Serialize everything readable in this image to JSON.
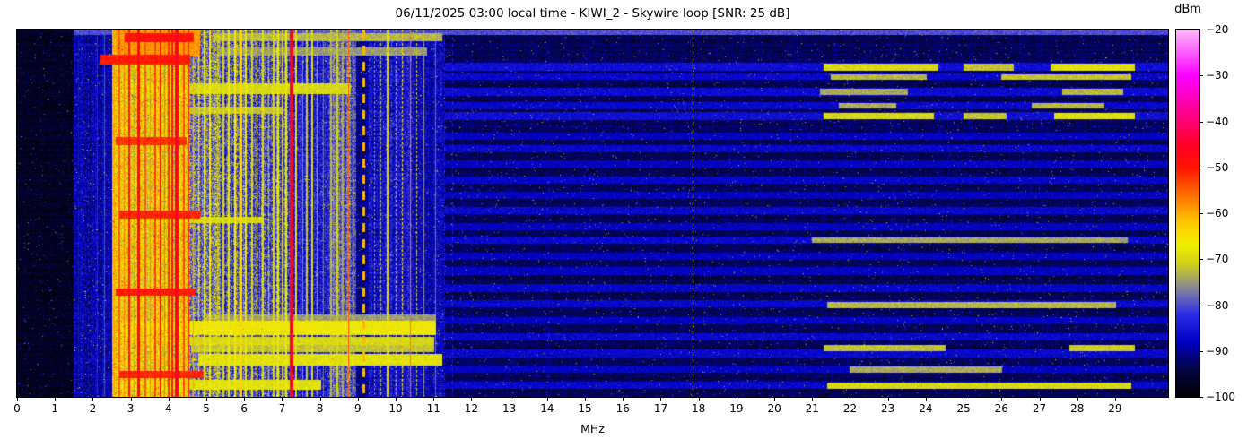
{
  "title": "06/11/2025 03:00 local time - KIWI_2 - Skywire loop [SNR: 25 dB]",
  "x_axis": {
    "label": "MHz",
    "tick_labels": [
      "0",
      "1",
      "2",
      "3",
      "4",
      "5",
      "6",
      "7",
      "8",
      "9",
      "10",
      "11",
      "12",
      "13",
      "14",
      "15",
      "16",
      "17",
      "18",
      "19",
      "20",
      "21",
      "22",
      "23",
      "24",
      "25",
      "26",
      "27",
      "28",
      "29"
    ]
  },
  "colorbar": {
    "label": "dBm",
    "tick_labels": [
      "−20",
      "−30",
      "−40",
      "−50",
      "−60",
      "−70",
      "−80",
      "−90",
      "−100"
    ],
    "tick_values": [
      -20,
      -30,
      -40,
      -50,
      -60,
      -70,
      -80,
      -90,
      -100
    ]
  },
  "chart_data": {
    "type": "heatmap",
    "title": "06/11/2025 03:00 local time - KIWI_2 - Skywire loop [SNR: 25 dB]",
    "xlabel": "MHz",
    "x_range_mhz": [
      0,
      30.4
    ],
    "x_tick_step_mhz": 1,
    "y_axis_ticks": [],
    "value_range_dbm": [
      -100,
      -20
    ],
    "colorbar_label": "dBm",
    "colormap_stops_dbm_rgb": [
      [
        -100,
        [
          0,
          0,
          0
        ]
      ],
      [
        -94,
        [
          5,
          5,
          70
        ]
      ],
      [
        -88,
        [
          0,
          0,
          200
        ]
      ],
      [
        -82,
        [
          45,
          45,
          230
        ]
      ],
      [
        -78,
        [
          110,
          110,
          180
        ]
      ],
      [
        -75,
        [
          155,
          155,
          120
        ]
      ],
      [
        -71,
        [
          210,
          210,
          25
        ]
      ],
      [
        -67,
        [
          240,
          240,
          0
        ]
      ],
      [
        -62,
        [
          255,
          200,
          0
        ]
      ],
      [
        -57,
        [
          255,
          125,
          0
        ]
      ],
      [
        -50,
        [
          255,
          20,
          0
        ]
      ],
      [
        -45,
        [
          255,
          0,
          40
        ]
      ],
      [
        -40,
        [
          255,
          0,
          115
        ]
      ],
      [
        -30,
        [
          250,
          0,
          255
        ]
      ],
      [
        -20,
        [
          255,
          185,
          252
        ]
      ]
    ],
    "noise_bands_fields": [
      "mhz0",
      "mhz1",
      "mean_dbm",
      "noise_dbm",
      "column_streak_dbm"
    ],
    "noise_bands": [
      [
        0.0,
        1.5,
        -97,
        3.0,
        1.0
      ],
      [
        1.5,
        2.5,
        -89,
        5.0,
        2.5
      ],
      [
        2.5,
        4.55,
        -66,
        8.0,
        5.0
      ],
      [
        4.55,
        5.35,
        -77,
        8.0,
        5.0
      ],
      [
        5.35,
        7.2,
        -80,
        8.0,
        6.0
      ],
      [
        7.2,
        8.25,
        -85,
        6.0,
        3.0
      ],
      [
        8.25,
        8.95,
        -79,
        6.0,
        4.0
      ],
      [
        8.95,
        9.3,
        -91,
        4.0,
        2.0
      ],
      [
        9.3,
        10.5,
        -86,
        6.0,
        3.0
      ],
      [
        10.5,
        11.3,
        -88,
        5.0,
        2.0
      ],
      [
        11.3,
        30.4,
        -93.5,
        3.5,
        1.3
      ]
    ],
    "vertical_lines_fields": [
      "mhz",
      "dbm",
      "width_px",
      "style"
    ],
    "vertical_lines": [
      [
        1.62,
        -86,
        1,
        "solid"
      ],
      [
        1.88,
        -84,
        1,
        "dash4"
      ],
      [
        2.12,
        -83,
        1,
        "solid"
      ],
      [
        2.3,
        -80,
        1,
        "solid"
      ],
      [
        2.56,
        -60,
        2,
        "solid"
      ],
      [
        2.7,
        -55,
        2,
        "solid"
      ],
      [
        2.84,
        -57,
        1,
        "solid"
      ],
      [
        2.96,
        -50,
        2,
        "solid"
      ],
      [
        3.1,
        -58,
        1,
        "solid"
      ],
      [
        3.22,
        -47,
        3,
        "solid"
      ],
      [
        3.38,
        -55,
        2,
        "solid"
      ],
      [
        3.52,
        -58,
        1,
        "solid"
      ],
      [
        3.64,
        -53,
        2,
        "solid"
      ],
      [
        3.78,
        -50,
        2,
        "solid"
      ],
      [
        3.9,
        -56,
        1,
        "solid"
      ],
      [
        4.0,
        -52,
        2,
        "solid"
      ],
      [
        4.1,
        -49,
        2,
        "solid"
      ],
      [
        4.22,
        -46,
        4,
        "solid"
      ],
      [
        4.4,
        -54,
        2,
        "solid"
      ],
      [
        4.52,
        -52,
        2,
        "solid"
      ],
      [
        4.66,
        -60,
        1,
        "solid"
      ],
      [
        4.8,
        -64,
        1,
        "solid"
      ],
      [
        4.95,
        -68,
        2,
        "solid"
      ],
      [
        5.1,
        -66,
        2,
        "solid"
      ],
      [
        5.3,
        -72,
        1,
        "solid"
      ],
      [
        5.45,
        -70,
        2,
        "solid"
      ],
      [
        5.6,
        -68,
        2,
        "solid"
      ],
      [
        5.75,
        -66,
        2,
        "solid"
      ],
      [
        5.9,
        -64,
        3,
        "solid"
      ],
      [
        6.05,
        -68,
        2,
        "solid"
      ],
      [
        6.2,
        -70,
        2,
        "solid"
      ],
      [
        6.35,
        -72,
        1,
        "solid"
      ],
      [
        6.5,
        -70,
        2,
        "solid"
      ],
      [
        6.65,
        -73,
        1,
        "solid"
      ],
      [
        6.78,
        -70,
        2,
        "solid"
      ],
      [
        6.9,
        -68,
        2,
        "solid"
      ],
      [
        7.02,
        -71,
        2,
        "solid"
      ],
      [
        7.12,
        -68,
        2,
        "solid"
      ],
      [
        7.25,
        -46,
        4,
        "solid"
      ],
      [
        7.38,
        -69,
        2,
        "solid"
      ],
      [
        7.55,
        -76,
        1,
        "solid"
      ],
      [
        7.65,
        -72,
        2,
        "solid"
      ],
      [
        7.8,
        -70,
        2,
        "solid"
      ],
      [
        7.92,
        -75,
        1,
        "solid"
      ],
      [
        8.1,
        -78,
        1,
        "solid"
      ],
      [
        8.3,
        -73,
        2,
        "solid"
      ],
      [
        8.45,
        -71,
        2,
        "solid"
      ],
      [
        8.6,
        -74,
        2,
        "solid"
      ],
      [
        8.75,
        -55,
        1,
        "solid"
      ],
      [
        8.88,
        -73,
        1,
        "solid"
      ],
      [
        9.15,
        -61,
        3,
        "dashed"
      ],
      [
        9.45,
        -75,
        1,
        "dotted"
      ],
      [
        9.6,
        -73,
        1,
        "dotted"
      ],
      [
        9.8,
        -70,
        3,
        "solid"
      ],
      [
        10.0,
        -72,
        1,
        "dotted"
      ],
      [
        10.18,
        -64,
        1,
        "dotted"
      ],
      [
        10.4,
        -56,
        1,
        "solid"
      ],
      [
        10.55,
        -72,
        1,
        "dotted"
      ],
      [
        10.75,
        -76,
        1,
        "solid"
      ],
      [
        11.05,
        -78,
        1,
        "solid"
      ],
      [
        11.5,
        -84,
        1,
        "dash4"
      ],
      [
        17.85,
        -73,
        1,
        "dash4"
      ]
    ],
    "horizontal_segments_fields": [
      "y0_frac",
      "y1_frac",
      "mhz0",
      "mhz1",
      "dbm"
    ],
    "horizontal_segments": [
      [
        0.0,
        0.01,
        1.5,
        30.4,
        -80
      ],
      [
        0.0,
        0.07,
        2.6,
        4.8,
        -59
      ],
      [
        0.012,
        0.03,
        2.85,
        4.65,
        -49
      ],
      [
        0.07,
        0.092,
        2.2,
        4.55,
        -50
      ],
      [
        0.012,
        0.028,
        5.2,
        11.2,
        -73
      ],
      [
        0.05,
        0.068,
        5.3,
        10.8,
        -75
      ],
      [
        0.148,
        0.172,
        2.5,
        8.8,
        -70
      ],
      [
        0.21,
        0.226,
        2.5,
        7.0,
        -72
      ],
      [
        0.295,
        0.31,
        2.6,
        4.45,
        -52
      ],
      [
        0.495,
        0.51,
        2.7,
        4.8,
        -51
      ],
      [
        0.512,
        0.524,
        2.5,
        6.5,
        -70
      ],
      [
        0.705,
        0.72,
        2.6,
        4.7,
        -50
      ],
      [
        0.778,
        0.794,
        5.0,
        11.05,
        -75
      ],
      [
        0.795,
        0.828,
        2.5,
        11.05,
        -67
      ],
      [
        0.837,
        0.855,
        2.6,
        11.0,
        -70
      ],
      [
        0.859,
        0.874,
        4.6,
        11.0,
        -72
      ],
      [
        0.885,
        0.912,
        4.8,
        11.2,
        -69
      ],
      [
        0.93,
        0.945,
        2.7,
        4.9,
        -51
      ],
      [
        0.955,
        0.976,
        2.6,
        8.0,
        -69
      ],
      [
        0.095,
        0.108,
        21.3,
        24.3,
        -70
      ],
      [
        0.095,
        0.108,
        25.0,
        26.3,
        -72
      ],
      [
        0.095,
        0.108,
        27.3,
        29.5,
        -69
      ],
      [
        0.122,
        0.133,
        21.5,
        24.0,
        -73
      ],
      [
        0.122,
        0.133,
        26.0,
        29.4,
        -72
      ],
      [
        0.163,
        0.175,
        21.2,
        23.5,
        -74
      ],
      [
        0.163,
        0.175,
        27.6,
        29.2,
        -73
      ],
      [
        0.2,
        0.212,
        21.7,
        23.2,
        -74
      ],
      [
        0.2,
        0.212,
        26.8,
        28.7,
        -73
      ],
      [
        0.228,
        0.241,
        21.3,
        24.2,
        -70
      ],
      [
        0.228,
        0.241,
        25.0,
        26.1,
        -72
      ],
      [
        0.228,
        0.241,
        27.4,
        29.5,
        -69
      ],
      [
        0.567,
        0.578,
        21.0,
        29.3,
        -74
      ],
      [
        0.742,
        0.754,
        21.4,
        29.0,
        -73
      ],
      [
        0.859,
        0.872,
        21.3,
        24.5,
        -72
      ],
      [
        0.859,
        0.872,
        27.8,
        29.5,
        -71
      ],
      [
        0.918,
        0.931,
        22.0,
        26.0,
        -74
      ],
      [
        0.961,
        0.975,
        21.4,
        29.4,
        -70
      ]
    ],
    "burst_rows_fields": [
      "y0_frac",
      "y1_frac",
      "mhz0",
      "mhz1",
      "dbm"
    ],
    "burst_rows": [
      [
        0.092,
        0.108,
        11.3,
        30.4,
        -86.0
      ],
      [
        0.12,
        0.133,
        11.3,
        30.4,
        -87.0
      ],
      [
        0.16,
        0.176,
        11.3,
        30.4,
        -86.5
      ],
      [
        0.198,
        0.213,
        11.3,
        30.4,
        -87.0
      ],
      [
        0.225,
        0.242,
        11.3,
        30.4,
        -86.0
      ],
      [
        0.282,
        0.296,
        11.3,
        30.4,
        -88.0
      ],
      [
        0.315,
        0.33,
        11.3,
        30.4,
        -87.0
      ],
      [
        0.357,
        0.372,
        11.3,
        30.4,
        -88.0
      ],
      [
        0.4,
        0.415,
        11.3,
        30.4,
        -87.5
      ],
      [
        0.443,
        0.458,
        11.3,
        30.4,
        -88.0
      ],
      [
        0.483,
        0.5,
        11.3,
        30.4,
        -87.0
      ],
      [
        0.527,
        0.543,
        11.3,
        30.4,
        -88.0
      ],
      [
        0.565,
        0.58,
        11.3,
        30.4,
        -87.0
      ],
      [
        0.608,
        0.623,
        11.3,
        30.4,
        -88.0
      ],
      [
        0.648,
        0.664,
        11.3,
        30.4,
        -88.0
      ],
      [
        0.693,
        0.71,
        11.3,
        30.4,
        -87.5
      ],
      [
        0.737,
        0.753,
        11.3,
        30.4,
        -87.0
      ],
      [
        0.783,
        0.8,
        11.3,
        30.4,
        -88.0
      ],
      [
        0.827,
        0.843,
        11.3,
        30.4,
        -87.0
      ],
      [
        0.871,
        0.888,
        11.3,
        30.4,
        -87.0
      ],
      [
        0.915,
        0.931,
        11.3,
        30.4,
        -88.0
      ],
      [
        0.959,
        0.975,
        11.3,
        30.4,
        -87.0
      ]
    ]
  }
}
